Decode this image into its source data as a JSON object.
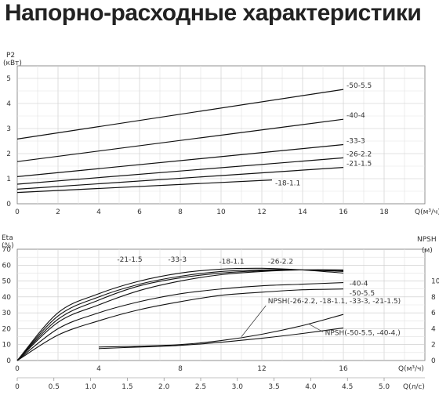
{
  "title": "Напорно-расходные характеристики",
  "chart_data": [
    {
      "type": "line",
      "ylabel_lines": [
        "P2",
        "(кВт)"
      ],
      "xlabel": "Q(м³/ч)",
      "x_ticks": [
        "0",
        "2",
        "4",
        "6",
        "8",
        "10",
        "12",
        "14",
        "16",
        "18"
      ],
      "y_ticks": [
        "0",
        "1",
        "2",
        "3",
        "4",
        "5"
      ],
      "xlim": [
        0,
        20
      ],
      "ylim": [
        0,
        5.5
      ],
      "grid": true,
      "series": [
        {
          "name": "-50-5.5",
          "x": [
            0,
            16
          ],
          "y": [
            2.58,
            4.56
          ]
        },
        {
          "name": "-40-4",
          "x": [
            0,
            16
          ],
          "y": [
            1.68,
            3.37
          ]
        },
        {
          "name": "-33-3",
          "x": [
            0,
            16
          ],
          "y": [
            1.08,
            2.36
          ]
        },
        {
          "name": "-26-2.2",
          "x": [
            0,
            16
          ],
          "y": [
            0.78,
            1.83
          ]
        },
        {
          "name": "-21-1.5",
          "x": [
            0,
            16
          ],
          "y": [
            0.58,
            1.45
          ]
        },
        {
          "name": "-18-1.1",
          "x": [
            0,
            12.5
          ],
          "y": [
            0.45,
            0.95
          ]
        }
      ]
    },
    {
      "type": "line",
      "ylabel_left": [
        "Eta",
        "(%)"
      ],
      "ylabel_right": [
        "NPSH",
        "(м)"
      ],
      "xlabel": "Q(м³/ч)",
      "xlabel2": "Q(л/с)",
      "x_ticks": [
        "0",
        "4",
        "8",
        "12",
        "16"
      ],
      "x2_ticks": [
        "0",
        "0.5",
        "1.0",
        "1.5",
        "2.0",
        "2.5",
        "3.0",
        "3.5",
        "4.0",
        "4.5",
        "5.0"
      ],
      "y_left_ticks": [
        "0",
        "10",
        "20",
        "30",
        "40",
        "50",
        "60",
        "70"
      ],
      "y_right_ticks": [
        "0",
        "2",
        "4",
        "6",
        "8",
        "10"
      ],
      "xlim": [
        0,
        20
      ],
      "ylim_left": [
        0,
        70
      ],
      "ylim_right": [
        0,
        14
      ],
      "grid": true,
      "eta_series": [
        {
          "name": "-21-1.5",
          "x": [
            0,
            2,
            4,
            6,
            8,
            10,
            12,
            14,
            16
          ],
          "y": [
            0,
            30,
            42,
            50,
            55,
            57.5,
            58,
            57,
            55
          ]
        },
        {
          "name": "-33-3",
          "x": [
            0,
            2,
            4,
            6,
            8,
            10,
            12,
            14,
            16
          ],
          "y": [
            0,
            28,
            40,
            48,
            53,
            56,
            57,
            57,
            56
          ]
        },
        {
          "name": "-18-1.1",
          "x": [
            0,
            2,
            4,
            6,
            8,
            10,
            12,
            14,
            16
          ],
          "y": [
            0,
            26,
            38,
            47,
            52,
            55,
            56.5,
            57,
            56.5
          ]
        },
        {
          "name": "-26-2.2",
          "x": [
            0,
            2,
            4,
            6,
            8,
            10,
            12,
            14,
            16
          ],
          "y": [
            0,
            24,
            35,
            44,
            50,
            54,
            56,
            57,
            57
          ]
        },
        {
          "name": "-40-4",
          "x": [
            0,
            2,
            4,
            6,
            8,
            10,
            12,
            14,
            16
          ],
          "y": [
            0,
            20,
            30,
            37,
            42,
            45,
            47,
            48,
            49
          ]
        },
        {
          "name": "-50-5.5",
          "x": [
            0,
            2,
            4,
            6,
            8,
            10,
            12,
            14,
            16
          ],
          "y": [
            0,
            16,
            25,
            32,
            37,
            41,
            43,
            44.5,
            45
          ]
        }
      ],
      "npsh_series": [
        {
          "name": "NPSH(-26-2.2, -18-1.1, -33-3, -21-1.5)",
          "x": [
            4,
            6,
            8,
            10,
            12,
            14,
            16
          ],
          "y": [
            1.7,
            1.8,
            2.0,
            2.5,
            3.3,
            4.4,
            5.8
          ]
        },
        {
          "name": "NPSH(-50-5.5, -40-4,)",
          "x": [
            4,
            6,
            8,
            10,
            12,
            14,
            16
          ],
          "y": [
            1.5,
            1.7,
            1.9,
            2.3,
            2.8,
            3.4,
            4.1
          ]
        }
      ]
    }
  ]
}
